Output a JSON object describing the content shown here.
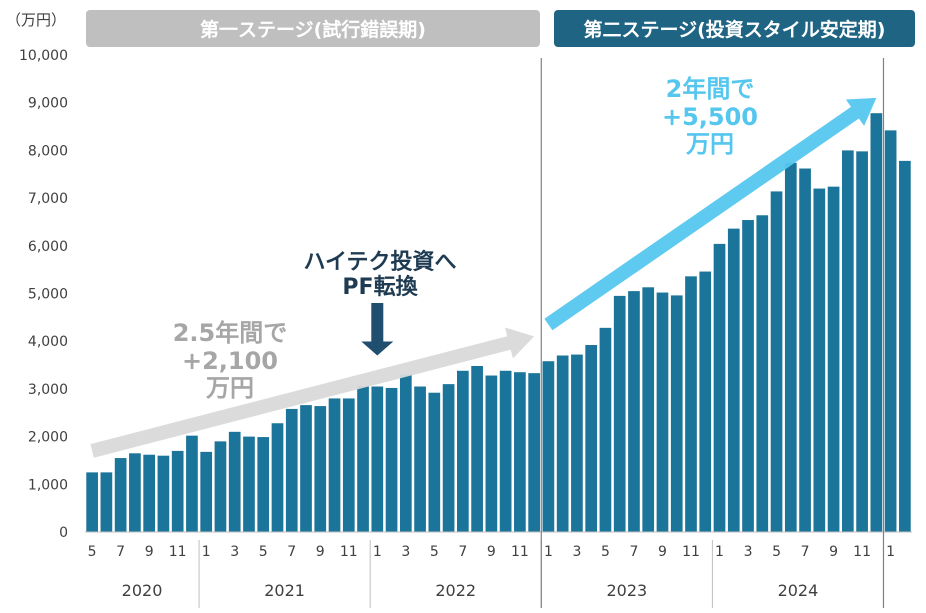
{
  "chart_data": {
    "type": "bar",
    "y_unit_label": "（万円）",
    "ylim": [
      0,
      10000
    ],
    "y_ticks": [
      "0",
      "1,000",
      "2,000",
      "3,000",
      "4,000",
      "5,000",
      "6,000",
      "7,000",
      "8,000",
      "9,000",
      "10,000"
    ],
    "bar_color": "#1b7499",
    "categories": [
      "2020-05",
      "2020-06",
      "2020-07",
      "2020-08",
      "2020-09",
      "2020-10",
      "2020-11",
      "2020-12",
      "2021-01",
      "2021-02",
      "2021-03",
      "2021-04",
      "2021-05",
      "2021-06",
      "2021-07",
      "2021-08",
      "2021-09",
      "2021-10",
      "2021-11",
      "2021-12",
      "2022-01",
      "2022-02",
      "2022-03",
      "2022-04",
      "2022-05",
      "2022-06",
      "2022-07",
      "2022-08",
      "2022-09",
      "2022-10",
      "2022-11",
      "2022-12",
      "2023-01",
      "2023-02",
      "2023-03",
      "2023-04",
      "2023-05",
      "2023-06",
      "2023-07",
      "2023-08",
      "2023-09",
      "2023-10",
      "2023-11",
      "2023-12",
      "2024-01",
      "2024-02",
      "2024-03",
      "2024-04",
      "2024-05",
      "2024-06",
      "2024-07",
      "2024-08",
      "2024-09",
      "2024-10",
      "2024-11",
      "2024-12",
      "2025-01",
      "2025-02"
    ],
    "values": [
      1250,
      1250,
      1550,
      1650,
      1620,
      1600,
      1700,
      2020,
      1680,
      1900,
      2100,
      2000,
      1990,
      2280,
      2580,
      2660,
      2640,
      2800,
      2800,
      3060,
      3050,
      3020,
      3300,
      3050,
      2920,
      3100,
      3380,
      3480,
      3280,
      3380,
      3350,
      3330,
      3580,
      3700,
      3720,
      3920,
      4280,
      4950,
      5050,
      5130,
      5020,
      4960,
      5360,
      5460,
      6040,
      6360,
      6540,
      6640,
      7140,
      7740,
      7620,
      7200,
      7240,
      8000,
      7980,
      8780,
      8420,
      7780
    ],
    "x_month_labels": [
      "5",
      "7",
      "9",
      "11",
      "1",
      "3",
      "5",
      "7",
      "9",
      "11",
      "1",
      "3",
      "5",
      "7",
      "9",
      "11",
      "1",
      "3",
      "5",
      "7",
      "9",
      "11",
      "1",
      "3",
      "5",
      "7",
      "9",
      "11",
      "1"
    ],
    "x_month_label_index": [
      0,
      2,
      4,
      6,
      8,
      10,
      12,
      14,
      16,
      18,
      20,
      22,
      24,
      26,
      28,
      30,
      32,
      34,
      36,
      38,
      40,
      42,
      44,
      46,
      48,
      50,
      52,
      54,
      56
    ],
    "years": [
      {
        "label": "2020",
        "start": 0,
        "end": 7
      },
      {
        "label": "2021",
        "start": 8,
        "end": 19
      },
      {
        "label": "2022",
        "start": 20,
        "end": 31
      },
      {
        "label": "2023",
        "start": 32,
        "end": 43
      },
      {
        "label": "2024",
        "start": 44,
        "end": 55
      }
    ],
    "stage_dividers_after_index": [
      31,
      55
    ],
    "stages": [
      {
        "label": "第一ステージ(試行錯誤期)",
        "color": "#bfbfbf"
      },
      {
        "label": "第二ステージ(投資スタイル安定期)",
        "color": "#1f6483"
      }
    ],
    "annotations": [
      {
        "lines": [
          "2.5年間で",
          "+2,100",
          "万円"
        ],
        "color": "#a6a6a6"
      },
      {
        "lines": [
          "2年間で",
          "+5,500",
          "万円"
        ],
        "color": "#55c7ef"
      },
      {
        "lines": [
          "ハイテク投資へ",
          "PF転換"
        ],
        "color": "#1f3b52"
      }
    ],
    "trend_arrows": [
      {
        "from": [
          0,
          1700
        ],
        "to": [
          31,
          4100
        ],
        "color": "#d9d9d9"
      },
      {
        "from": [
          32,
          4350
        ],
        "to": [
          55,
          9100
        ],
        "color": "#55c7ef"
      }
    ],
    "pointer_arrow": {
      "at_index": 20,
      "top_value": 4800,
      "bottom_value": 3700,
      "color": "#1f4e6f"
    }
  }
}
